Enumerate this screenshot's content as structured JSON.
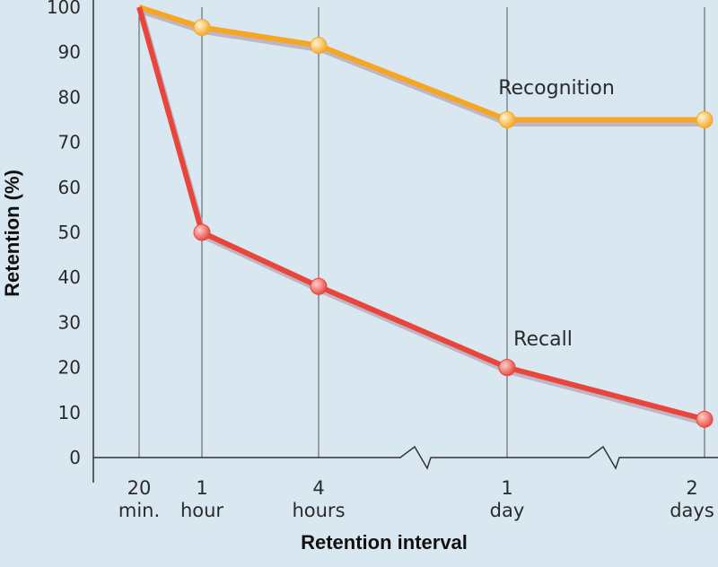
{
  "chart_data": {
    "type": "line",
    "xlabel": "Retention interval",
    "ylabel": "Retention (%)",
    "ylim": [
      0,
      100
    ],
    "yticks": [
      0,
      10,
      20,
      30,
      40,
      50,
      60,
      70,
      80,
      90,
      100
    ],
    "categories": [
      [
        "20",
        "min."
      ],
      [
        "1",
        "hour"
      ],
      [
        "4",
        "hours"
      ],
      [
        "1",
        "day"
      ],
      [
        "2",
        "days"
      ]
    ],
    "grid": "vertical",
    "series": [
      {
        "name": "Recognition",
        "color": "#f5a623",
        "values": [
          100,
          95.5,
          91.5,
          75,
          75
        ]
      },
      {
        "name": "Recall",
        "color": "#e8453c",
        "values": [
          100,
          50,
          38,
          20,
          8.5
        ]
      }
    ]
  }
}
